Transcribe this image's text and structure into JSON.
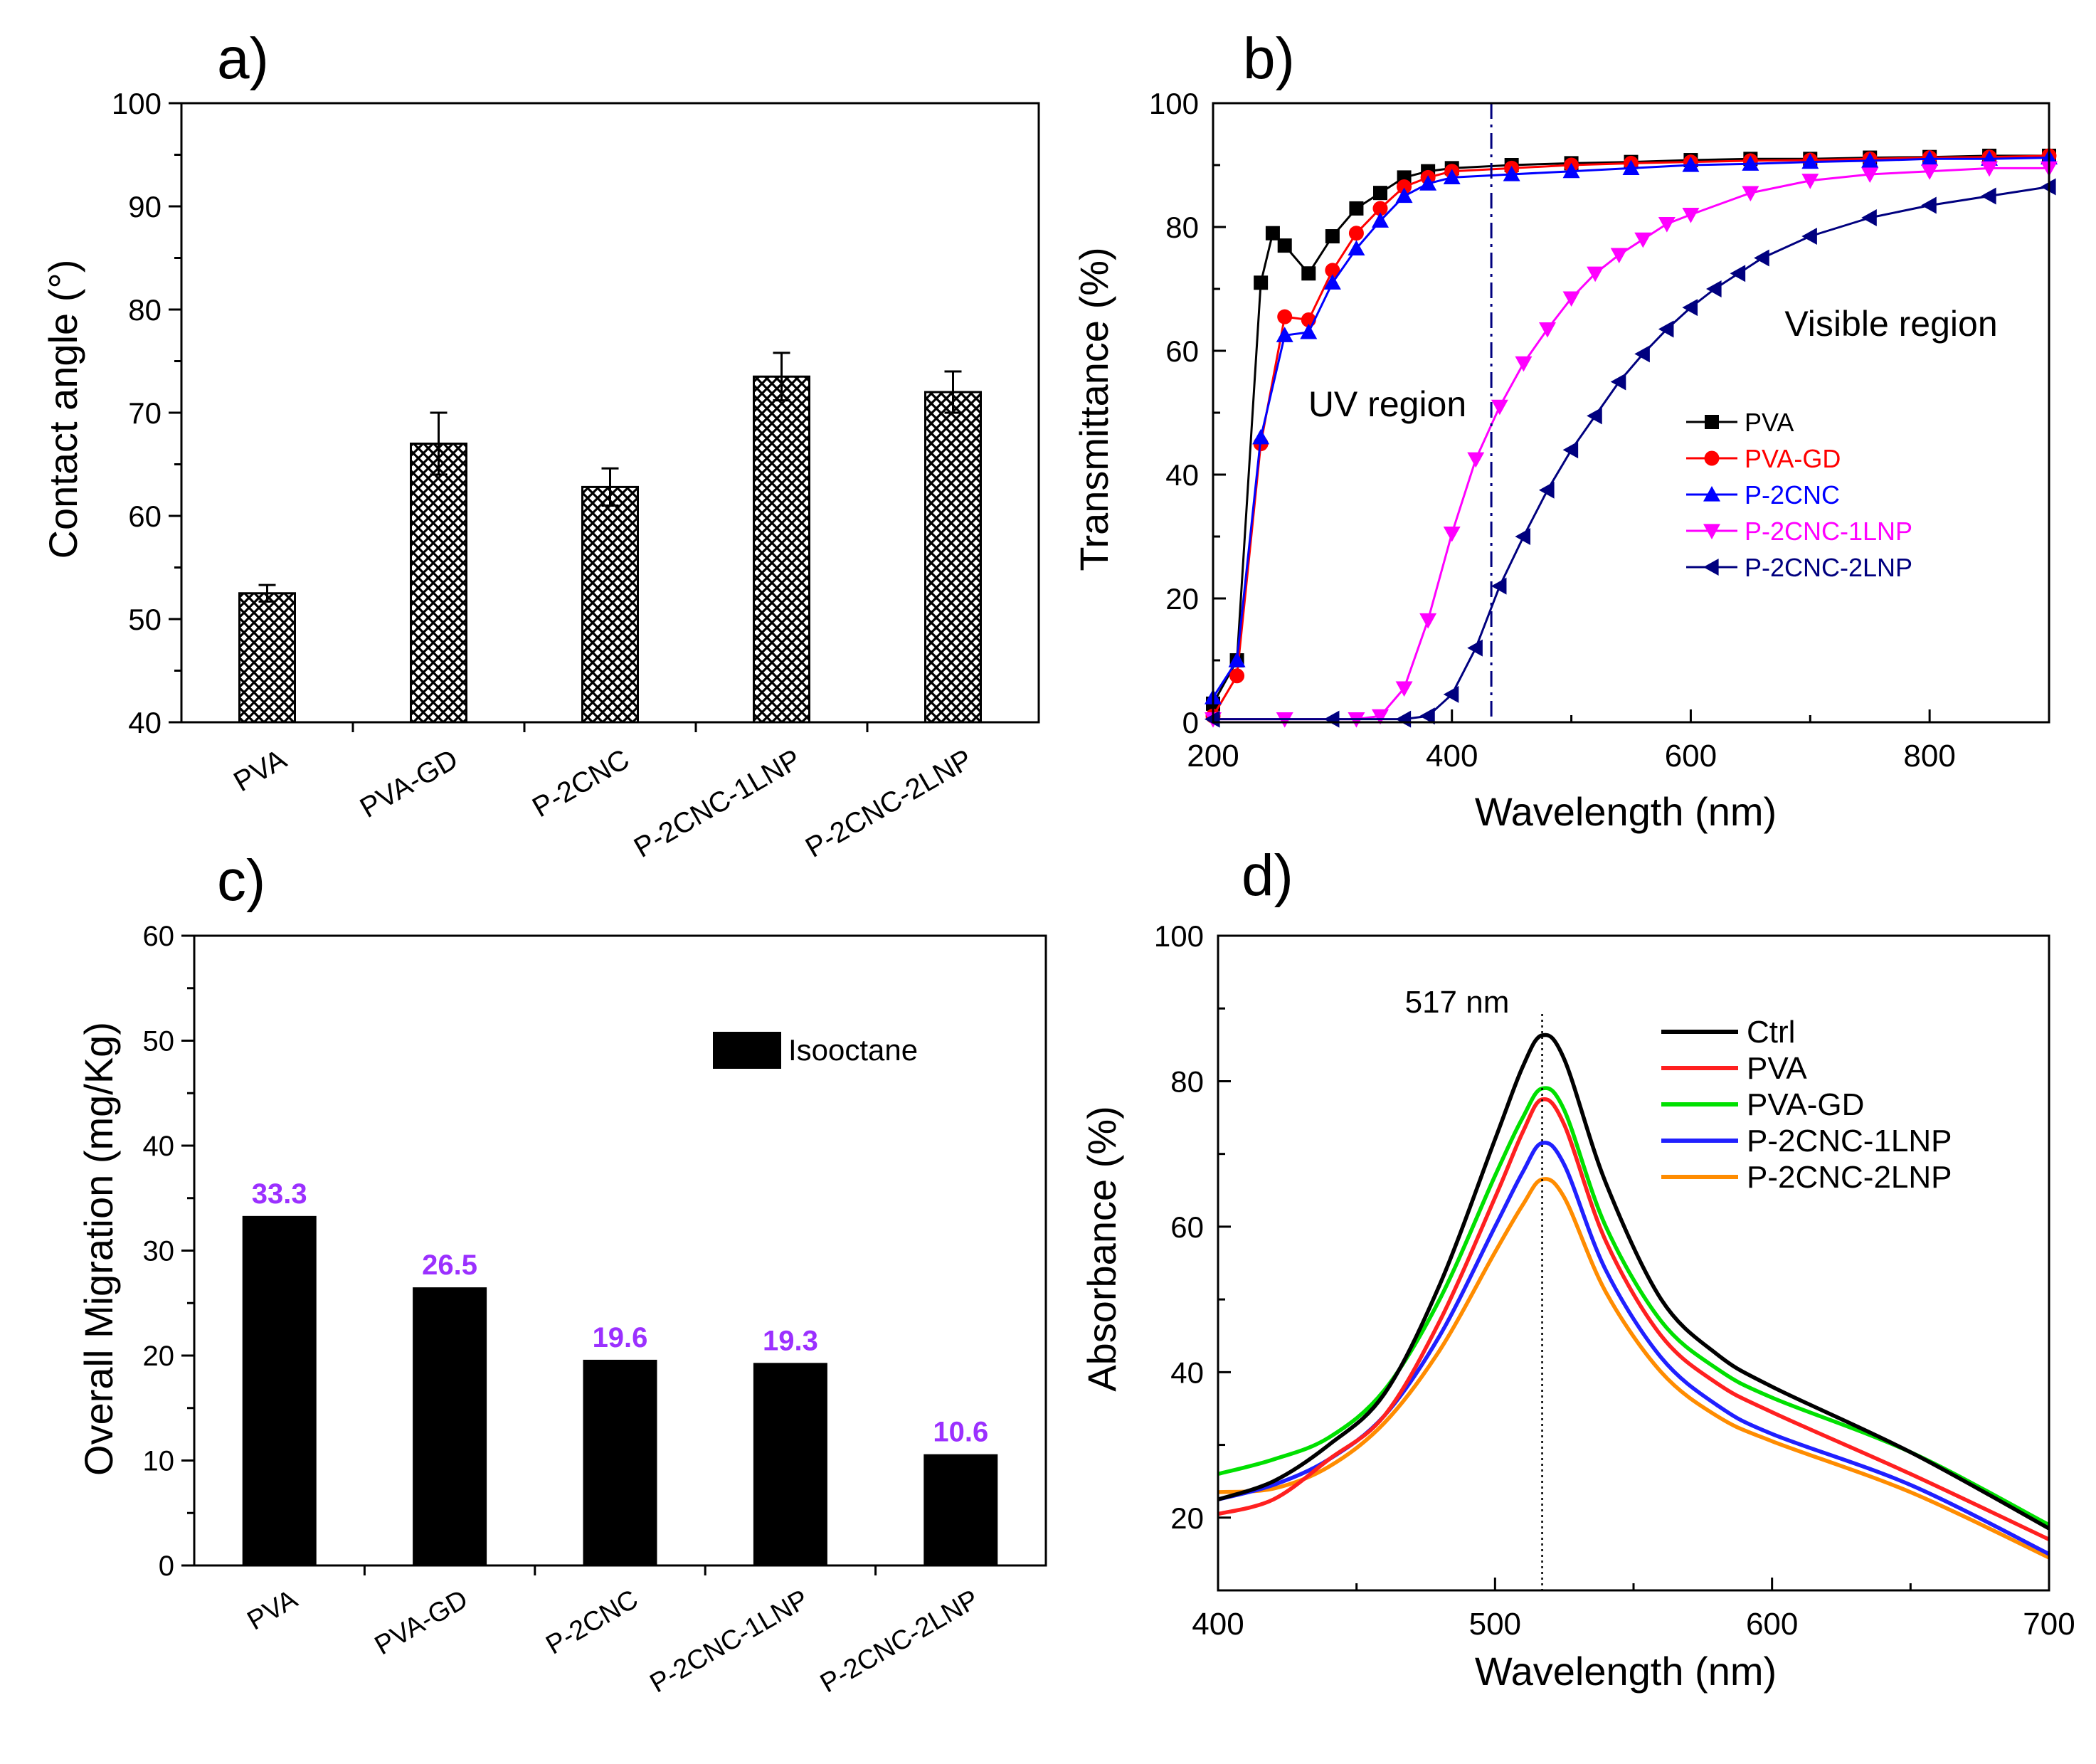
{
  "chart_data": [
    {
      "panel": "a)",
      "type": "bar",
      "ylabel": "Contact angle (°)",
      "xlabel": "",
      "ylim": [
        40,
        100
      ],
      "yticks": [
        40,
        50,
        60,
        70,
        80,
        90,
        100
      ],
      "categories": [
        "PVA",
        "PVA-GD",
        "P-2CNC",
        "P-2CNC-1LNP",
        "P-2CNC-2LNP"
      ],
      "values": [
        52.5,
        67.0,
        62.8,
        73.5,
        72.0
      ],
      "errors": [
        0.8,
        3.0,
        1.8,
        2.3,
        2.0
      ],
      "pattern": "crosshatch"
    },
    {
      "panel": "b)",
      "type": "line",
      "xlabel": "Wavelength (nm)",
      "ylabel": "Transmittance (%)",
      "xlim": [
        200,
        900
      ],
      "ylim": [
        0,
        100
      ],
      "xticks": [
        200,
        400,
        600,
        800
      ],
      "yticks": [
        0,
        20,
        40,
        60,
        80,
        100
      ],
      "vline": 433,
      "annotations": [
        "UV region",
        "Visible region"
      ],
      "legend_position": "center-right",
      "series": [
        {
          "name": "PVA",
          "color": "#000000",
          "marker": "square",
          "x": [
            200,
            220,
            240,
            250,
            260,
            280,
            300,
            320,
            340,
            360,
            380,
            400,
            450,
            500,
            550,
            600,
            650,
            700,
            750,
            800,
            850,
            900
          ],
          "y": [
            3,
            10,
            71,
            79,
            77,
            72.5,
            78.5,
            83,
            85.5,
            88,
            89,
            89.5,
            90,
            90.3,
            90.5,
            90.8,
            91,
            91,
            91.2,
            91.3,
            91.5,
            91.5
          ]
        },
        {
          "name": "PVA-GD",
          "color": "#ff0000",
          "marker": "circle",
          "x": [
            200,
            220,
            240,
            260,
            280,
            300,
            320,
            340,
            360,
            380,
            400,
            450,
            500,
            550,
            600,
            650,
            700,
            750,
            800,
            850,
            900
          ],
          "y": [
            1,
            7.5,
            45,
            65.5,
            65,
            73,
            79,
            83,
            86.5,
            88,
            89,
            89.5,
            90,
            90.3,
            90.5,
            90.7,
            90.8,
            91,
            91.2,
            91.3,
            91.5
          ]
        },
        {
          "name": "P-2CNC",
          "color": "#0000ff",
          "marker": "triangle-up",
          "x": [
            200,
            220,
            240,
            260,
            280,
            300,
            320,
            340,
            360,
            380,
            400,
            450,
            500,
            550,
            600,
            650,
            700,
            750,
            800,
            850,
            900
          ],
          "y": [
            4,
            10,
            46,
            62.5,
            63,
            71,
            76.5,
            81,
            85,
            87,
            88,
            88.5,
            89,
            89.5,
            90,
            90.2,
            90.5,
            90.7,
            91,
            91,
            91.2
          ]
        },
        {
          "name": "P-2CNC-1LNP",
          "color": "#ff00ff",
          "marker": "triangle-down",
          "x": [
            200,
            260,
            320,
            340,
            360,
            380,
            400,
            420,
            440,
            460,
            480,
            500,
            520,
            540,
            560,
            580,
            600,
            650,
            700,
            750,
            800,
            850,
            900
          ],
          "y": [
            0.5,
            0.5,
            0.5,
            1,
            5.5,
            16.5,
            30.5,
            42.5,
            51,
            58,
            63.5,
            68.5,
            72.5,
            75.5,
            78,
            80.5,
            82,
            85.5,
            87.5,
            88.5,
            89,
            89.5,
            89.5
          ]
        },
        {
          "name": "P-2CNC-2LNP",
          "color": "#00007f",
          "marker": "triangle-left",
          "x": [
            200,
            300,
            360,
            380,
            400,
            420,
            440,
            460,
            480,
            500,
            520,
            540,
            560,
            580,
            600,
            620,
            640,
            660,
            700,
            750,
            800,
            850,
            900
          ],
          "y": [
            0.5,
            0.5,
            0.5,
            1,
            4.5,
            12,
            22,
            30,
            37.5,
            44,
            49.5,
            55,
            59.5,
            63.5,
            67,
            70,
            72.5,
            75,
            78.5,
            81.5,
            83.5,
            85,
            86.5
          ]
        }
      ]
    },
    {
      "panel": "c)",
      "type": "bar",
      "ylabel": "Overall Migration (mg/Kg)",
      "xlabel": "",
      "ylim": [
        0,
        60
      ],
      "yticks": [
        0,
        10,
        20,
        30,
        40,
        50,
        60
      ],
      "categories": [
        "PVA",
        "PVA-GD",
        "P-2CNC",
        "P-2CNC-1LNP",
        "P-2CNC-2LNP"
      ],
      "series": [
        {
          "name": "Isooctane",
          "values": [
            33.3,
            26.5,
            19.6,
            19.3,
            10.6
          ]
        }
      ],
      "data_labels": [
        "33.3",
        "26.5",
        "19.6",
        "19.3",
        "10.6"
      ],
      "label_color": "#9b30ff",
      "legend_position": "top-right"
    },
    {
      "panel": "d)",
      "type": "line",
      "xlabel": "Wavelength (nm)",
      "ylabel": "Absorbance (%)",
      "xlim": [
        400,
        700
      ],
      "ylim": [
        10,
        100
      ],
      "xticks": [
        400,
        500,
        600,
        700
      ],
      "yticks": [
        20,
        40,
        60,
        80,
        100
      ],
      "vline": 517,
      "annotation": "517 nm",
      "legend_position": "top-right",
      "series": [
        {
          "name": "Ctrl",
          "color": "#000000",
          "x": [
            400,
            420,
            440,
            460,
            480,
            500,
            510,
            517,
            525,
            540,
            560,
            580,
            600,
            650,
            700
          ],
          "y": [
            22.5,
            25,
            30,
            37,
            52,
            72,
            82,
            86.3,
            83,
            66,
            50,
            42.5,
            38,
            29,
            18.5
          ]
        },
        {
          "name": "PVA",
          "color": "#ff2020",
          "x": [
            400,
            420,
            440,
            460,
            480,
            500,
            510,
            517,
            525,
            540,
            560,
            580,
            600,
            650,
            700
          ],
          "y": [
            20.5,
            22.5,
            28,
            34,
            47,
            64,
            73,
            77.5,
            74,
            58,
            45,
            38.5,
            34.5,
            26,
            17
          ]
        },
        {
          "name": "PVA-GD",
          "color": "#00e000",
          "x": [
            400,
            420,
            440,
            460,
            480,
            500,
            510,
            517,
            525,
            540,
            560,
            580,
            600,
            650,
            700
          ],
          "y": [
            26,
            28,
            31,
            37.5,
            50,
            67,
            75,
            79,
            76,
            60,
            47,
            40.5,
            36.5,
            29,
            19
          ]
        },
        {
          "name": "P-2CNC-1LNP",
          "color": "#2020ff",
          "x": [
            400,
            420,
            440,
            460,
            480,
            500,
            510,
            517,
            525,
            540,
            560,
            580,
            600,
            650,
            700
          ],
          "y": [
            22.5,
            24.5,
            28,
            34,
            45,
            60,
            67.5,
            71.5,
            68.5,
            54,
            42,
            35.5,
            31.5,
            24.5,
            15
          ]
        },
        {
          "name": "P-2CNC-2LNP",
          "color": "#ff8c00",
          "x": [
            400,
            420,
            440,
            460,
            480,
            500,
            510,
            517,
            525,
            540,
            560,
            580,
            600,
            650,
            700
          ],
          "y": [
            23.5,
            24,
            27,
            33,
            43,
            56.5,
            63,
            66.5,
            64,
            51,
            40,
            34,
            30.5,
            23.5,
            14.5
          ]
        }
      ]
    }
  ]
}
